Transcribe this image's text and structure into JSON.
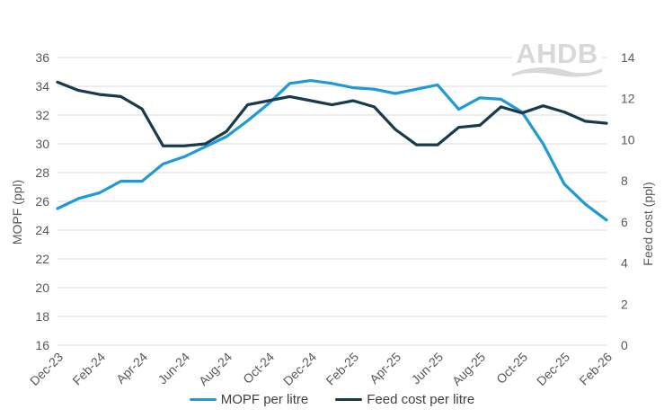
{
  "watermark": "AHDB",
  "chart_data": {
    "type": "line",
    "x_categories": [
      "Dec-23",
      "Jan-24",
      "Feb-24",
      "Mar-24",
      "Apr-24",
      "May-24",
      "Jun-24",
      "Jul-24",
      "Aug-24",
      "Sep-24",
      "Oct-24",
      "Nov-24",
      "Dec-24",
      "Jan-25",
      "Feb-25",
      "Mar-25",
      "Apr-25",
      "May-25",
      "Jun-25",
      "Jul-25",
      "Aug-25",
      "Sep-25",
      "Oct-25",
      "Nov-25",
      "Dec-25",
      "Jan-26",
      "Feb-26"
    ],
    "x_tick_interval": 2,
    "x_tick_labels_shown": [
      "Dec-23",
      "Feb-24",
      "Apr-24",
      "Jun-24",
      "Aug-24",
      "Oct-24",
      "Dec-24",
      "Feb-25",
      "Apr-25",
      "Jun-25",
      "Aug-25",
      "Oct-25",
      "Dec-25",
      "Feb-26"
    ],
    "series": [
      {
        "name": "MOPF per litre",
        "axis": "left",
        "color": "#1f9ad6",
        "values": [
          25.5,
          26.2,
          26.6,
          27.4,
          27.4,
          28.6,
          29.1,
          29.8,
          30.5,
          31.6,
          32.8,
          34.2,
          34.4,
          34.2,
          33.9,
          33.8,
          33.5,
          33.8,
          34.1,
          32.4,
          33.2,
          33.1,
          32.2,
          30.0,
          27.2,
          25.8,
          24.7
        ]
      },
      {
        "name": "Feed cost per litre",
        "axis": "right",
        "color": "#173b4d",
        "values": [
          12.8,
          12.4,
          12.2,
          12.1,
          11.5,
          9.7,
          9.7,
          9.8,
          10.4,
          11.7,
          11.9,
          12.1,
          11.9,
          11.7,
          11.9,
          11.6,
          10.5,
          9.75,
          9.75,
          10.6,
          10.7,
          11.6,
          11.3,
          11.65,
          11.35,
          10.9,
          10.8
        ]
      }
    ],
    "left_axis": {
      "label": "MOPF (ppl)",
      "min": 16,
      "max": 36,
      "step": 2,
      "ticks": [
        "36",
        "34",
        "32",
        "30",
        "28",
        "26",
        "24",
        "22",
        "20",
        "18",
        "16"
      ]
    },
    "right_axis": {
      "label": "Feed cost (ppl)",
      "min": 0,
      "max": 14,
      "step": 2,
      "ticks": [
        "14",
        "12",
        "10",
        "8",
        "6",
        "4",
        "2",
        "0"
      ]
    },
    "grid": "horizontal",
    "gridline_color": "#d9d9d9",
    "tick_label_color": "#595959",
    "legend_position": "bottom"
  }
}
